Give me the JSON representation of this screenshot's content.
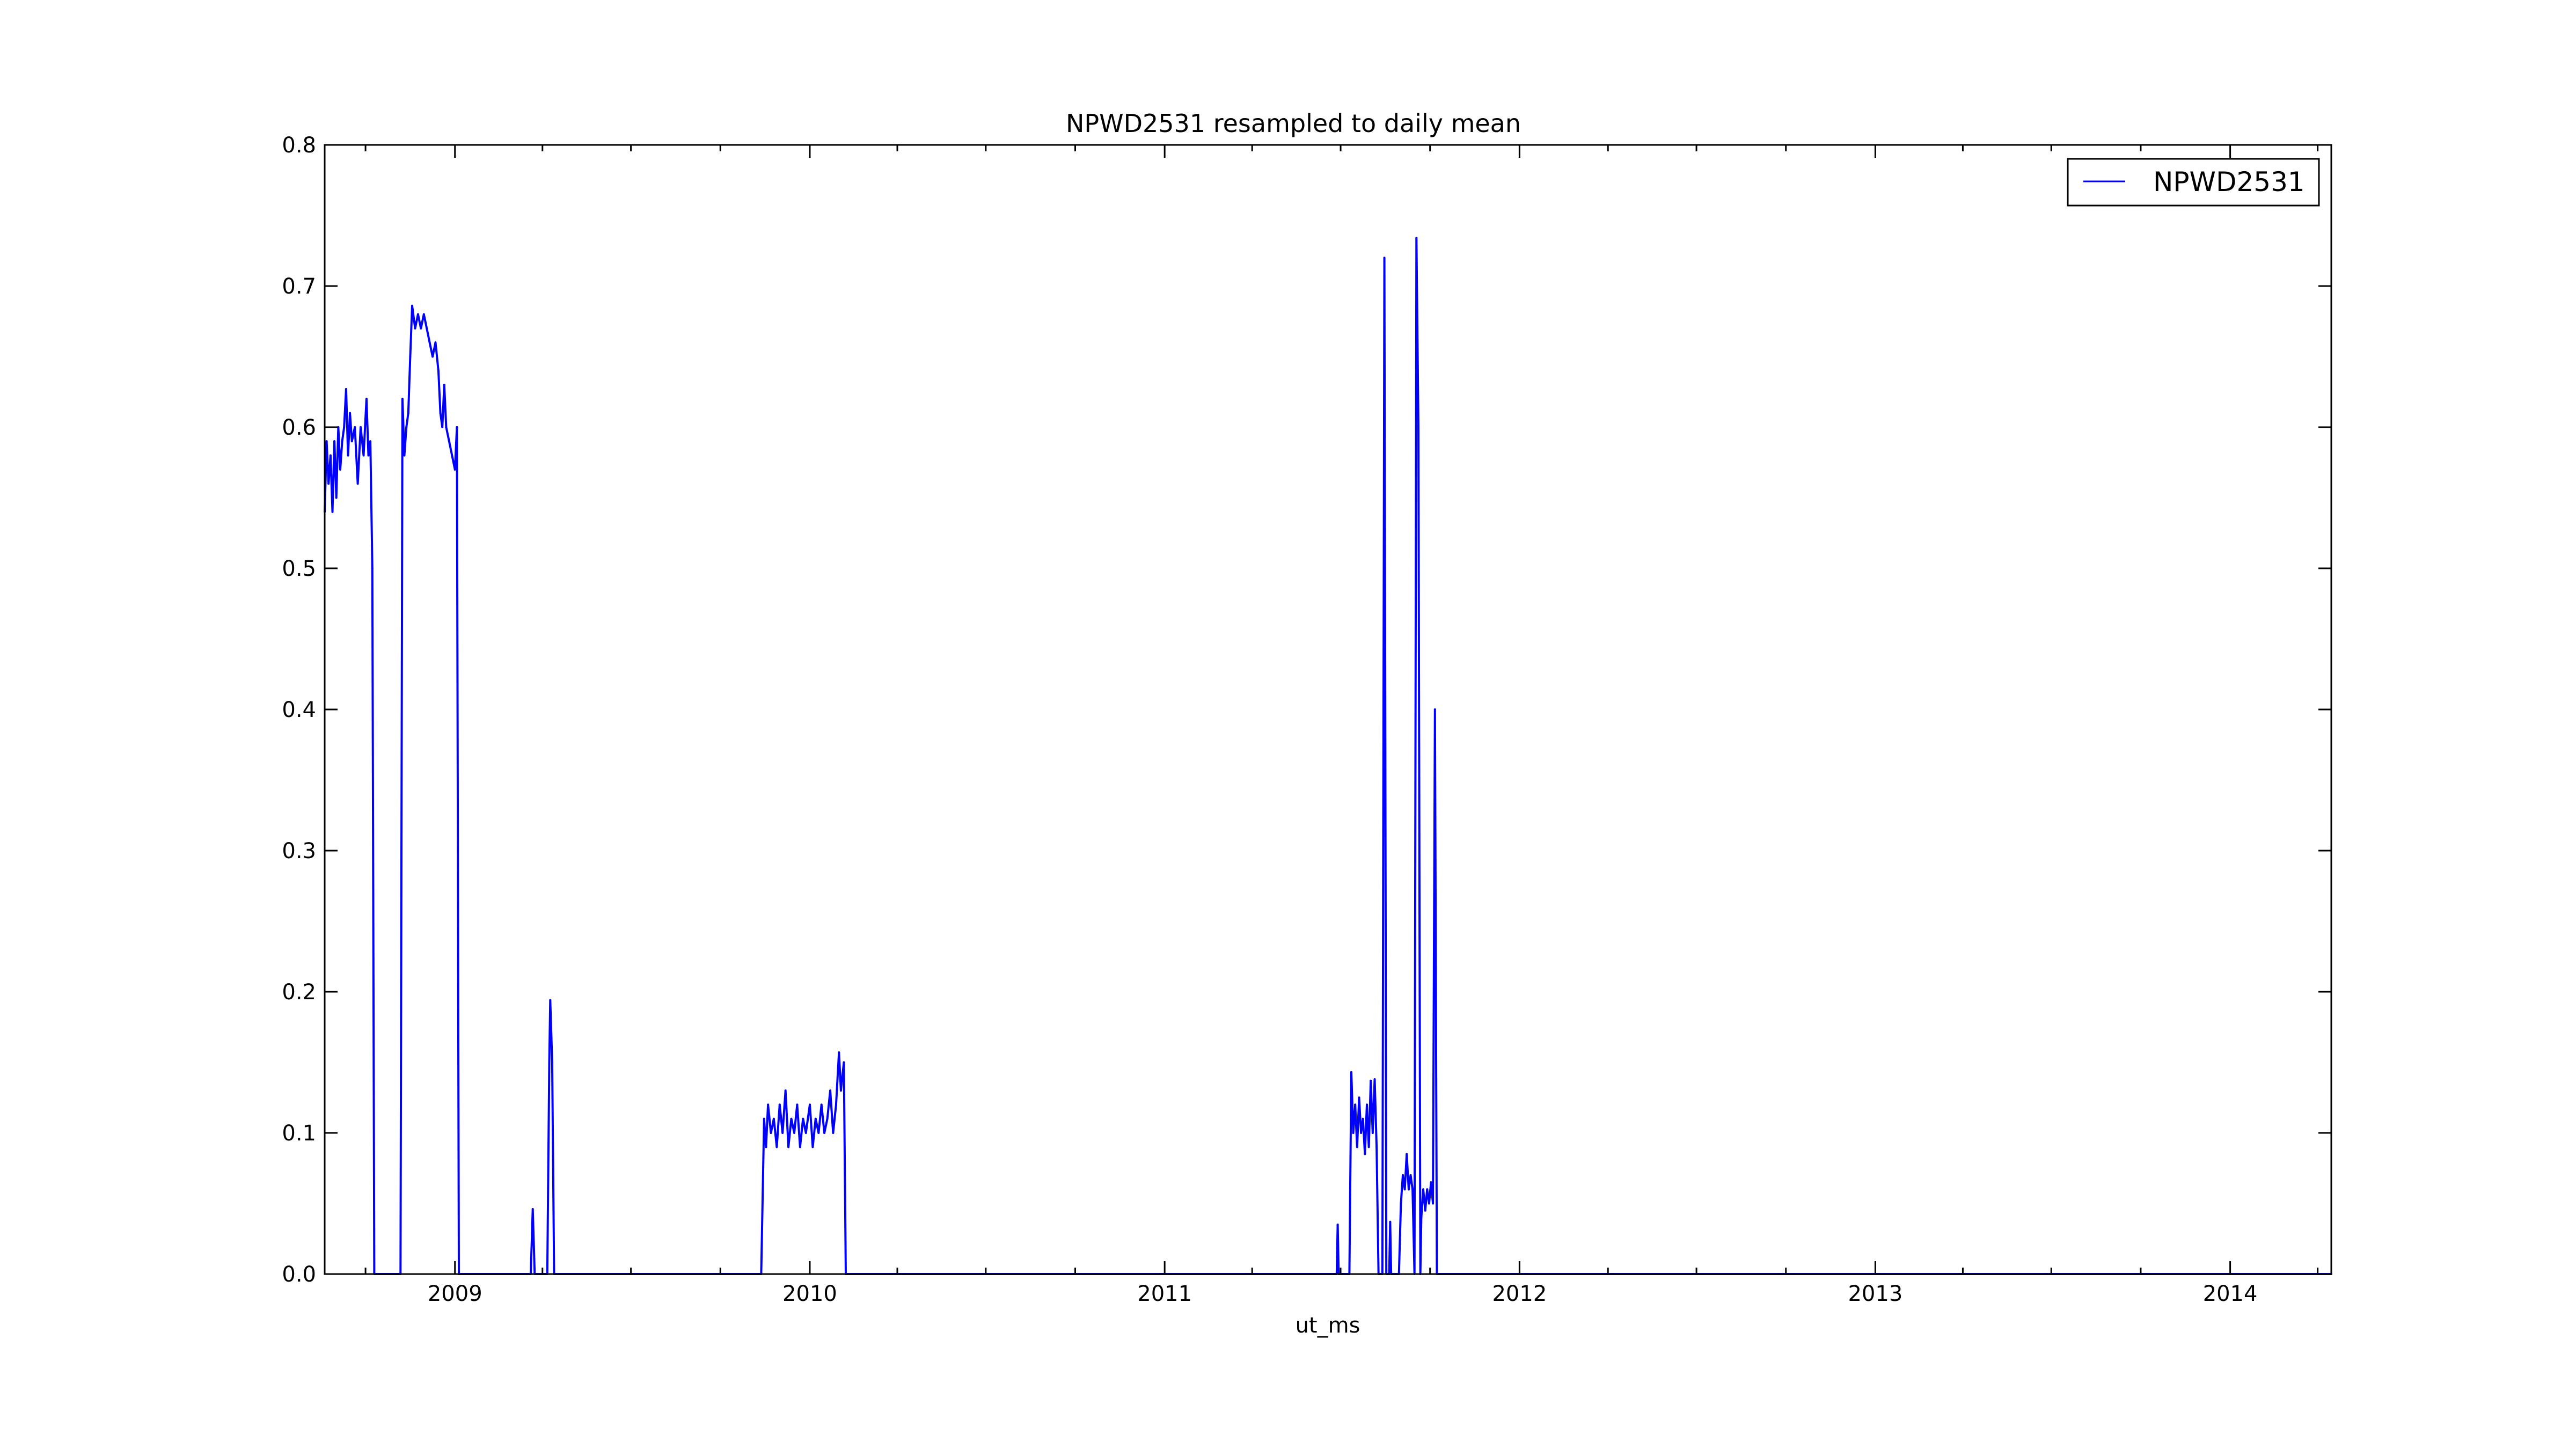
{
  "chart_data": {
    "type": "line",
    "title": "NPWD2531 resampled to daily mean",
    "xlabel": "ut_ms",
    "ylabel": "",
    "xlim": [
      "2008-08-20",
      "2014-04-15"
    ],
    "ylim": [
      0,
      0.8
    ],
    "yticks": [
      "0.0",
      "0.1",
      "0.2",
      "0.3",
      "0.4",
      "0.5",
      "0.6",
      "0.7",
      "0.8"
    ],
    "xticks": [
      {
        "date": "2009-01-01",
        "label": "2009"
      },
      {
        "date": "2010-01-01",
        "label": "2010"
      },
      {
        "date": "2011-01-01",
        "label": "2011"
      },
      {
        "date": "2012-01-01",
        "label": "2012"
      },
      {
        "date": "2013-01-01",
        "label": "2013"
      },
      {
        "date": "2014-01-01",
        "label": "2014"
      }
    ],
    "grid": false,
    "legend": "top-right",
    "series": [
      {
        "name": "NPWD2531",
        "color": "#0000ff",
        "points": [
          [
            "2008-08-20",
            0.54
          ],
          [
            "2008-08-22",
            0.59
          ],
          [
            "2008-08-24",
            0.56
          ],
          [
            "2008-08-26",
            0.58
          ],
          [
            "2008-08-28",
            0.54
          ],
          [
            "2008-08-30",
            0.59
          ],
          [
            "2008-09-01",
            0.55
          ],
          [
            "2008-09-03",
            0.6
          ],
          [
            "2008-09-05",
            0.57
          ],
          [
            "2008-09-07",
            0.59
          ],
          [
            "2008-09-09",
            0.6
          ],
          [
            "2008-09-11",
            0.627
          ],
          [
            "2008-09-13",
            0.58
          ],
          [
            "2008-09-15",
            0.61
          ],
          [
            "2008-09-17",
            0.59
          ],
          [
            "2008-09-20",
            0.6
          ],
          [
            "2008-09-23",
            0.56
          ],
          [
            "2008-09-26",
            0.6
          ],
          [
            "2008-09-29",
            0.58
          ],
          [
            "2008-10-02",
            0.62
          ],
          [
            "2008-10-04",
            0.58
          ],
          [
            "2008-10-06",
            0.59
          ],
          [
            "2008-10-08",
            0.5
          ],
          [
            "2008-10-10",
            0.0
          ],
          [
            "2008-11-06",
            0.0
          ],
          [
            "2008-11-08",
            0.62
          ],
          [
            "2008-11-10",
            0.58
          ],
          [
            "2008-11-12",
            0.6
          ],
          [
            "2008-11-14",
            0.61
          ],
          [
            "2008-11-16",
            0.65
          ],
          [
            "2008-11-18",
            0.686
          ],
          [
            "2008-11-21",
            0.67
          ],
          [
            "2008-11-24",
            0.68
          ],
          [
            "2008-11-27",
            0.67
          ],
          [
            "2008-11-30",
            0.68
          ],
          [
            "2008-12-03",
            0.67
          ],
          [
            "2008-12-06",
            0.66
          ],
          [
            "2008-12-09",
            0.65
          ],
          [
            "2008-12-12",
            0.66
          ],
          [
            "2008-12-15",
            0.64
          ],
          [
            "2008-12-17",
            0.61
          ],
          [
            "2008-12-19",
            0.6
          ],
          [
            "2008-12-21",
            0.63
          ],
          [
            "2008-12-23",
            0.6
          ],
          [
            "2008-12-26",
            0.59
          ],
          [
            "2008-12-29",
            0.58
          ],
          [
            "2009-01-01",
            0.57
          ],
          [
            "2009-01-03",
            0.6
          ],
          [
            "2009-01-05",
            0.0
          ],
          [
            "2009-03-20",
            0.0
          ],
          [
            "2009-03-22",
            0.046
          ],
          [
            "2009-03-24",
            0.0
          ],
          [
            "2009-04-06",
            0.0
          ],
          [
            "2009-04-08",
            0.15
          ],
          [
            "2009-04-09",
            0.194
          ],
          [
            "2009-04-11",
            0.15
          ],
          [
            "2009-04-13",
            0.0
          ],
          [
            "2009-11-12",
            0.0
          ],
          [
            "2009-11-15",
            0.11
          ],
          [
            "2009-11-17",
            0.09
          ],
          [
            "2009-11-19",
            0.12
          ],
          [
            "2009-11-22",
            0.1
          ],
          [
            "2009-11-25",
            0.11
          ],
          [
            "2009-11-28",
            0.09
          ],
          [
            "2009-12-01",
            0.12
          ],
          [
            "2009-12-04",
            0.1
          ],
          [
            "2009-12-07",
            0.13
          ],
          [
            "2009-12-10",
            0.09
          ],
          [
            "2009-12-13",
            0.11
          ],
          [
            "2009-12-16",
            0.1
          ],
          [
            "2009-12-19",
            0.12
          ],
          [
            "2009-12-22",
            0.09
          ],
          [
            "2009-12-25",
            0.11
          ],
          [
            "2009-12-28",
            0.1
          ],
          [
            "2010-01-01",
            0.12
          ],
          [
            "2010-01-04",
            0.09
          ],
          [
            "2010-01-07",
            0.11
          ],
          [
            "2010-01-10",
            0.1
          ],
          [
            "2010-01-13",
            0.12
          ],
          [
            "2010-01-16",
            0.1
          ],
          [
            "2010-01-19",
            0.11
          ],
          [
            "2010-01-22",
            0.13
          ],
          [
            "2010-01-25",
            0.1
          ],
          [
            "2010-01-28",
            0.12
          ],
          [
            "2010-01-31",
            0.157
          ],
          [
            "2010-02-02",
            0.13
          ],
          [
            "2010-02-05",
            0.15
          ],
          [
            "2010-02-07",
            0.0
          ],
          [
            "2011-06-27",
            0.0
          ],
          [
            "2011-06-28",
            0.035
          ],
          [
            "2011-06-29",
            0.0
          ],
          [
            "2011-07-10",
            0.0
          ],
          [
            "2011-07-12",
            0.143
          ],
          [
            "2011-07-14",
            0.1
          ],
          [
            "2011-07-16",
            0.12
          ],
          [
            "2011-07-18",
            0.09
          ],
          [
            "2011-07-20",
            0.125
          ],
          [
            "2011-07-22",
            0.1
          ],
          [
            "2011-07-24",
            0.11
          ],
          [
            "2011-07-26",
            0.085
          ],
          [
            "2011-07-28",
            0.12
          ],
          [
            "2011-07-30",
            0.09
          ],
          [
            "2011-08-01",
            0.137
          ],
          [
            "2011-08-03",
            0.1
          ],
          [
            "2011-08-05",
            0.138
          ],
          [
            "2011-08-07",
            0.09
          ],
          [
            "2011-08-09",
            0.0
          ],
          [
            "2011-08-13",
            0.0
          ],
          [
            "2011-08-15",
            0.72
          ],
          [
            "2011-08-17",
            0.0
          ],
          [
            "2011-08-20",
            0.0
          ],
          [
            "2011-08-21",
            0.037
          ],
          [
            "2011-08-22",
            0.0
          ],
          [
            "2011-08-30",
            0.0
          ],
          [
            "2011-09-01",
            0.05
          ],
          [
            "2011-09-03",
            0.07
          ],
          [
            "2011-09-05",
            0.06
          ],
          [
            "2011-09-07",
            0.085
          ],
          [
            "2011-09-09",
            0.06
          ],
          [
            "2011-09-11",
            0.07
          ],
          [
            "2011-09-13",
            0.06
          ],
          [
            "2011-09-15",
            0.0
          ],
          [
            "2011-09-17",
            0.734
          ],
          [
            "2011-09-19",
            0.6
          ],
          [
            "2011-09-21",
            0.0
          ],
          [
            "2011-09-22",
            0.04
          ],
          [
            "2011-09-24",
            0.06
          ],
          [
            "2011-09-26",
            0.045
          ],
          [
            "2011-09-28",
            0.06
          ],
          [
            "2011-09-30",
            0.05
          ],
          [
            "2011-10-02",
            0.065
          ],
          [
            "2011-10-04",
            0.05
          ],
          [
            "2011-10-06",
            0.4
          ],
          [
            "2011-10-08",
            0.0
          ],
          [
            "2014-04-15",
            0.0
          ]
        ]
      }
    ]
  }
}
